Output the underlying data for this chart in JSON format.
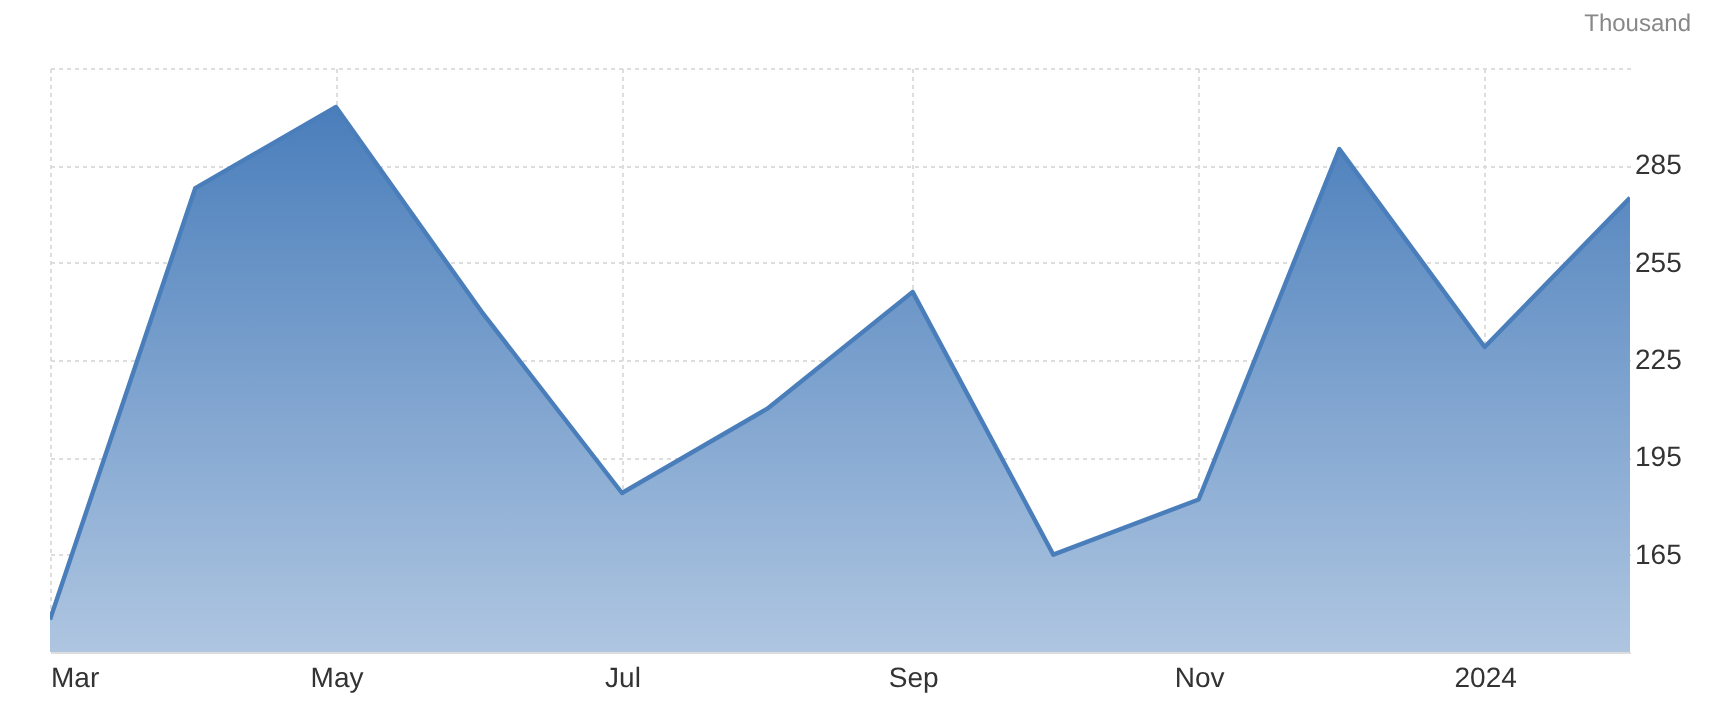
{
  "chart_data": {
    "type": "area",
    "ylabel": "Thousand",
    "x": [
      "2023-03",
      "2023-04",
      "2023-05",
      "2023-06",
      "2023-07",
      "2023-08",
      "2023-09",
      "2023-10",
      "2023-11",
      "2023-12",
      "2024-01",
      "2024-02"
    ],
    "series": [
      {
        "color": "#4a7ebb",
        "values": [
          145,
          278,
          303,
          240,
          184,
          210,
          246,
          165,
          182,
          290,
          229,
          275
        ]
      }
    ],
    "xlim": [
      "2023-03",
      "2024-02"
    ],
    "xticks": [
      {
        "value": "2023-03",
        "label": "Mar"
      },
      {
        "value": "2023-05",
        "label": "May"
      },
      {
        "value": "2023-07",
        "label": "Jul"
      },
      {
        "value": "2023-09",
        "label": "Sep"
      },
      {
        "value": "2023-11",
        "label": "Nov"
      },
      {
        "value": "2024-01",
        "label": "2024"
      }
    ],
    "ylim": [
      135,
      315
    ],
    "yticks": [
      165,
      195,
      225,
      255,
      285,
      {
        "value": 315,
        "label": null
      }
    ],
    "grid": true
  }
}
